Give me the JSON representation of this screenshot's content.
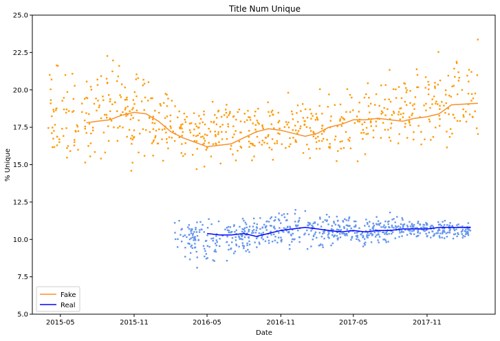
{
  "chart_data": {
    "type": "scatter",
    "title": "Title Num Unique",
    "xlabel": "Date",
    "ylabel": "% Unique",
    "xlim": [
      "2015-02-20",
      "2018-04-20"
    ],
    "ylim": [
      5.0,
      25.0
    ],
    "x_ticks": [
      "2015-05",
      "2015-11",
      "2016-05",
      "2016-11",
      "2017-05",
      "2017-11"
    ],
    "y_ticks": [
      "5.0",
      "7.5",
      "10.0",
      "12.5",
      "15.0",
      "17.5",
      "20.0",
      "22.5",
      "25.0"
    ],
    "grid": false,
    "legend_position": "lower-left",
    "series": [
      {
        "name": "Fake",
        "color": "#ff9900",
        "trend_color": "#f5902a",
        "date_range": [
          "2015-04-01",
          "2018-03-08"
        ],
        "trend": [
          {
            "x": "2015-07-05",
            "y": 17.8
          },
          {
            "x": "2015-08-01",
            "y": 17.9
          },
          {
            "x": "2015-09-01",
            "y": 18.0
          },
          {
            "x": "2015-10-01",
            "y": 18.3
          },
          {
            "x": "2015-11-01",
            "y": 18.5
          },
          {
            "x": "2015-12-01",
            "y": 18.4
          },
          {
            "x": "2016-01-01",
            "y": 17.9
          },
          {
            "x": "2016-02-01",
            "y": 17.2
          },
          {
            "x": "2016-03-01",
            "y": 16.8
          },
          {
            "x": "2016-04-01",
            "y": 16.5
          },
          {
            "x": "2016-05-01",
            "y": 16.2
          },
          {
            "x": "2016-06-01",
            "y": 16.3
          },
          {
            "x": "2016-07-01",
            "y": 16.4
          },
          {
            "x": "2016-08-01",
            "y": 16.8
          },
          {
            "x": "2016-09-01",
            "y": 17.2
          },
          {
            "x": "2016-10-01",
            "y": 17.4
          },
          {
            "x": "2016-11-01",
            "y": 17.3
          },
          {
            "x": "2016-12-01",
            "y": 17.1
          },
          {
            "x": "2017-01-01",
            "y": 16.9
          },
          {
            "x": "2017-02-01",
            "y": 17.1
          },
          {
            "x": "2017-03-01",
            "y": 17.5
          },
          {
            "x": "2017-04-01",
            "y": 17.7
          },
          {
            "x": "2017-05-01",
            "y": 18.0
          },
          {
            "x": "2017-06-01",
            "y": 18.0
          },
          {
            "x": "2017-07-01",
            "y": 18.1
          },
          {
            "x": "2017-08-01",
            "y": 18.0
          },
          {
            "x": "2017-09-01",
            "y": 17.9
          },
          {
            "x": "2017-10-01",
            "y": 18.1
          },
          {
            "x": "2017-11-01",
            "y": 18.2
          },
          {
            "x": "2017-12-01",
            "y": 18.4
          },
          {
            "x": "2018-01-01",
            "y": 19.0
          },
          {
            "x": "2018-03-08",
            "y": 19.1
          }
        ],
        "envelope": [
          {
            "x": "2015-04-01",
            "low": 12.0,
            "high": 24.0
          },
          {
            "x": "2015-07-01",
            "low": 13.0,
            "high": 23.5
          },
          {
            "x": "2015-10-01",
            "low": 13.5,
            "high": 24.0
          },
          {
            "x": "2016-01-01",
            "low": 14.0,
            "high": 21.0
          },
          {
            "x": "2016-04-01",
            "low": 14.5,
            "high": 19.5
          },
          {
            "x": "2016-07-01",
            "low": 14.5,
            "high": 20.0
          },
          {
            "x": "2016-10-01",
            "low": 14.5,
            "high": 20.5
          },
          {
            "x": "2017-01-01",
            "low": 14.0,
            "high": 21.0
          },
          {
            "x": "2017-04-01",
            "low": 14.5,
            "high": 21.0
          },
          {
            "x": "2017-07-01",
            "low": 15.0,
            "high": 21.5
          },
          {
            "x": "2017-10-01",
            "low": 15.0,
            "high": 22.5
          },
          {
            "x": "2018-01-01",
            "low": 15.0,
            "high": 24.0
          }
        ],
        "sample_points": 720
      },
      {
        "name": "Real",
        "color": "#6495ed",
        "trend_color": "#0000ff",
        "date_range": [
          "2016-02-10",
          "2018-02-18"
        ],
        "trend": [
          {
            "x": "2016-05-01",
            "y": 10.4
          },
          {
            "x": "2016-06-01",
            "y": 10.3
          },
          {
            "x": "2016-07-01",
            "y": 10.3
          },
          {
            "x": "2016-08-01",
            "y": 10.4
          },
          {
            "x": "2016-09-01",
            "y": 10.2
          },
          {
            "x": "2016-10-01",
            "y": 10.4
          },
          {
            "x": "2016-11-01",
            "y": 10.6
          },
          {
            "x": "2016-12-01",
            "y": 10.7
          },
          {
            "x": "2017-01-01",
            "y": 10.8
          },
          {
            "x": "2017-02-01",
            "y": 10.7
          },
          {
            "x": "2017-03-01",
            "y": 10.6
          },
          {
            "x": "2017-04-01",
            "y": 10.5
          },
          {
            "x": "2017-05-01",
            "y": 10.6
          },
          {
            "x": "2017-06-01",
            "y": 10.5
          },
          {
            "x": "2017-07-01",
            "y": 10.6
          },
          {
            "x": "2017-08-01",
            "y": 10.6
          },
          {
            "x": "2017-09-01",
            "y": 10.7
          },
          {
            "x": "2017-10-01",
            "y": 10.7
          },
          {
            "x": "2017-11-01",
            "y": 10.7
          },
          {
            "x": "2017-12-01",
            "y": 10.8
          },
          {
            "x": "2018-02-18",
            "y": 10.8
          }
        ],
        "envelope": [
          {
            "x": "2016-02-10",
            "low": 8.5,
            "high": 12.0
          },
          {
            "x": "2016-05-01",
            "low": 7.5,
            "high": 12.0
          },
          {
            "x": "2016-08-01",
            "low": 8.5,
            "high": 12.0
          },
          {
            "x": "2016-11-01",
            "low": 9.0,
            "high": 12.5
          },
          {
            "x": "2017-02-01",
            "low": 9.0,
            "high": 12.0
          },
          {
            "x": "2017-05-01",
            "low": 9.0,
            "high": 12.0
          },
          {
            "x": "2017-08-01",
            "low": 9.5,
            "high": 12.0
          },
          {
            "x": "2017-11-01",
            "low": 9.8,
            "high": 11.5
          },
          {
            "x": "2018-02-18",
            "low": 10.0,
            "high": 11.3
          }
        ],
        "sample_points": 720
      }
    ]
  }
}
